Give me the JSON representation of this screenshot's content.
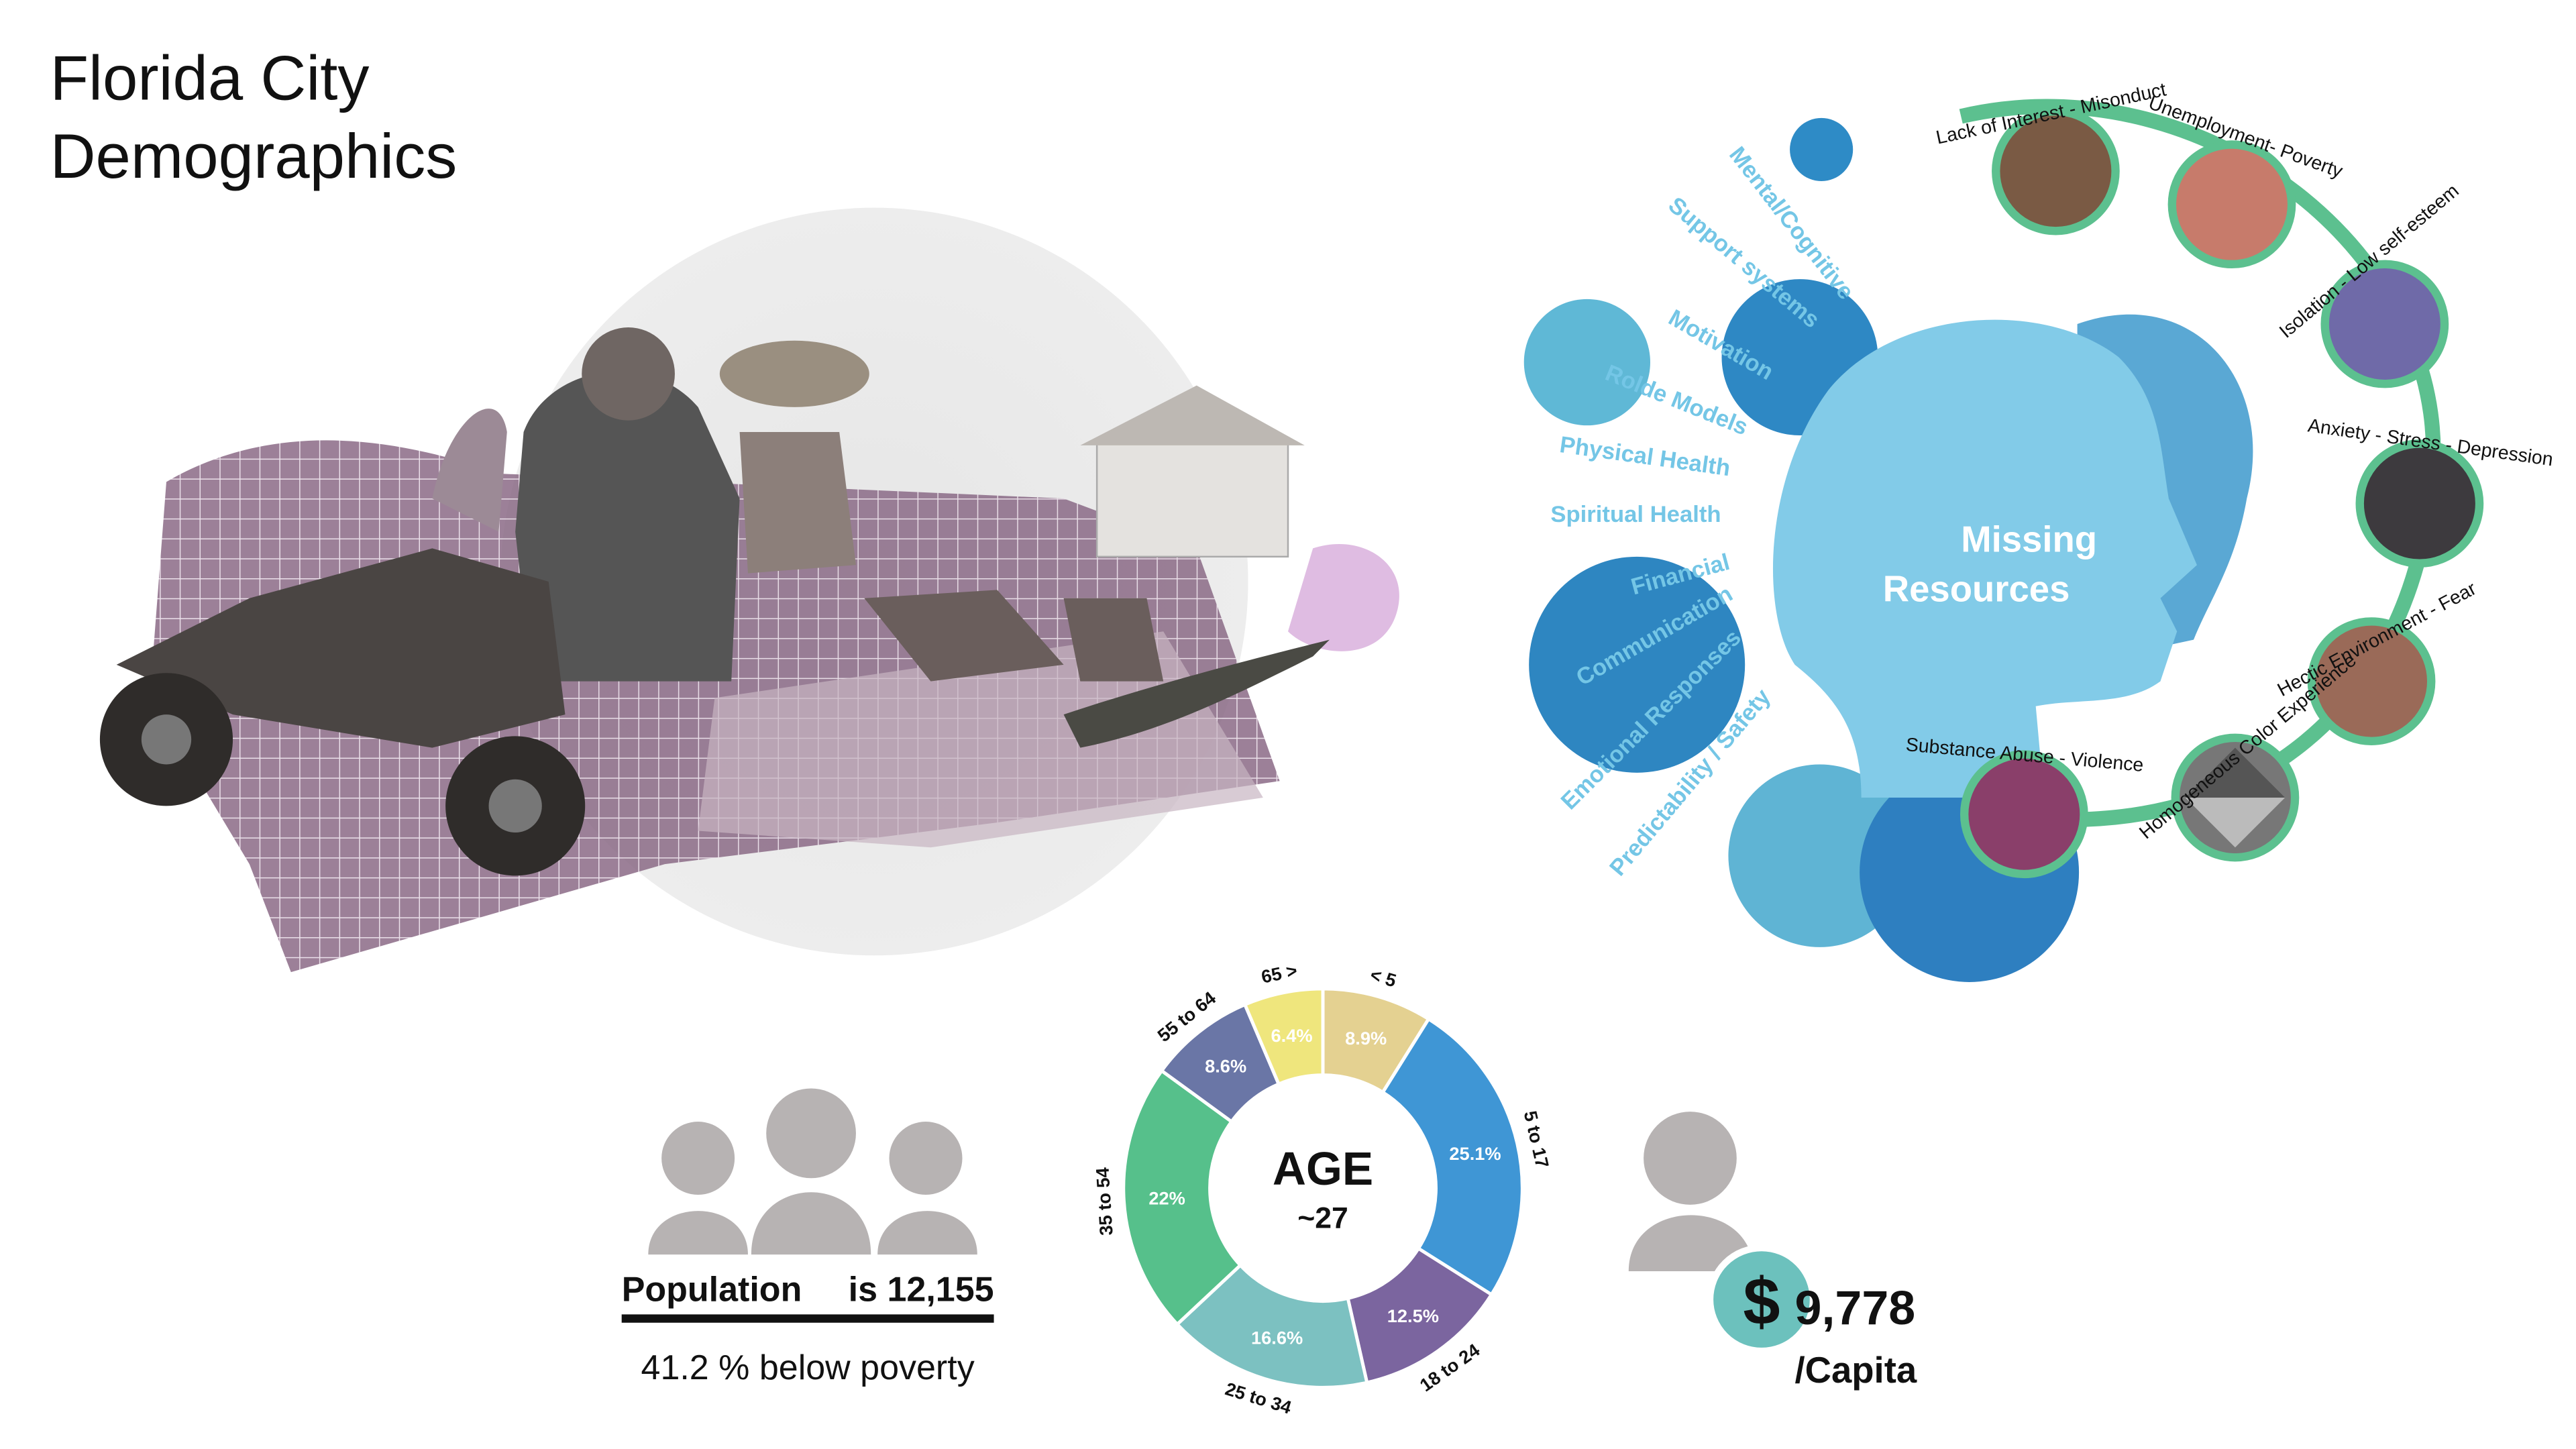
{
  "title": [
    "Florida City",
    "Demographics"
  ],
  "missing_resources": {
    "title": [
      "Missing",
      "Resources"
    ],
    "needs": [
      "Mental/Cognitive",
      "Support systems",
      "Motivation",
      "Rolde Models",
      "Physical Health",
      "Spiritual Health",
      "Financial",
      "Communication",
      "Emotional Responses",
      "Predictability / Safety"
    ],
    "issues": [
      "Lack of Interest - Misonduct",
      "Unemployment- Poverty",
      "Isolation - Low self-esteem",
      "Anxiety - Stress - Depression",
      "Hectic Environment - Fear",
      "Homogeneous Color Experience",
      "Substance Abuse - Violence"
    ]
  },
  "chart_data": {
    "type": "donut",
    "title": "AGE",
    "subtitle": "~27",
    "categories": [
      "< 5",
      "5 to 17",
      "18 to 24",
      "25 to 34",
      "35 to 54",
      "55 to 64",
      "65 >"
    ],
    "values": [
      8.9,
      25.1,
      12.5,
      16.6,
      22,
      8.6,
      6.4
    ],
    "value_labels": [
      "8.9%",
      "25.1%",
      "12.5%",
      "16.6%",
      "22%",
      "8.6%",
      "6.4%"
    ],
    "colors": [
      "#e4d191",
      "#3f96d5",
      "#7b659f",
      "#7cc1c1",
      "#56c08b",
      "#6a76a6",
      "#efe67d"
    ]
  },
  "population": {
    "label": "Population",
    "text": "is 12,155",
    "poverty": "41.2 % below poverty"
  },
  "income": {
    "symbol": "$",
    "amount": "9,778",
    "unit": "/Capita"
  }
}
